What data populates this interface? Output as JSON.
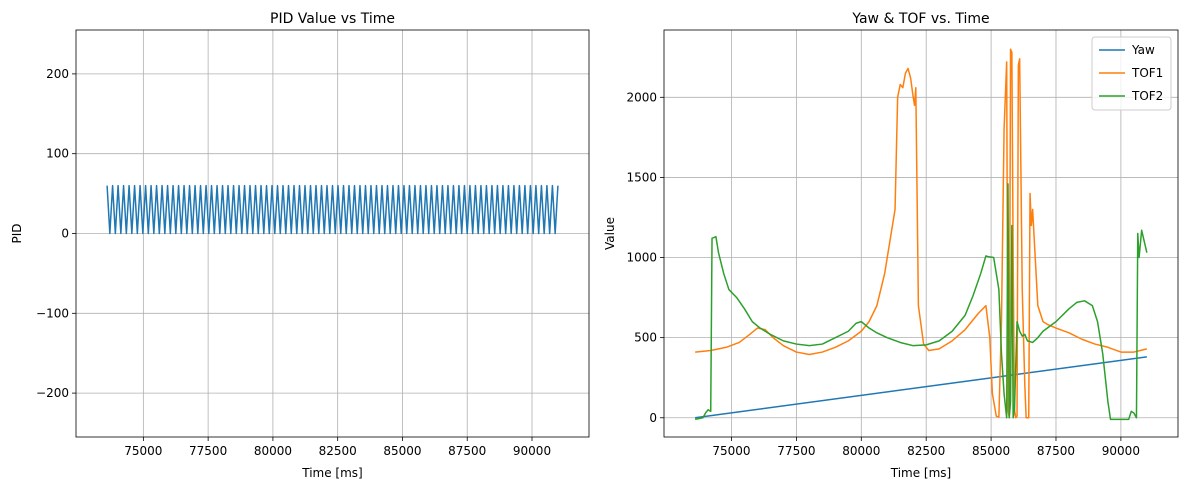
{
  "chart_data": [
    {
      "type": "line",
      "title": "PID Value vs Time",
      "xlabel": "Time [ms]",
      "ylabel": "PID",
      "xlim": [
        72400,
        92200
      ],
      "ylim": [
        -255,
        255
      ],
      "xticks": [
        75000,
        77500,
        80000,
        82500,
        85000,
        87500,
        90000
      ],
      "xtick_labels": [
        "75000",
        "77500",
        "80000",
        "82500",
        "85000",
        "87500",
        "90000"
      ],
      "yticks": [
        -200,
        -100,
        0,
        100,
        200
      ],
      "ytick_labels": [
        "−200",
        "−100",
        "0",
        "100",
        "200"
      ],
      "grid": true,
      "legend": null,
      "series": [
        {
          "color": "#1f77b4",
          "oscillation": {
            "x_start": 73600,
            "x_end": 91000,
            "high": 60,
            "low": 0,
            "cycles": 82
          }
        }
      ]
    },
    {
      "type": "line",
      "title": "Yaw & TOF vs. Time",
      "xlabel": "Time [ms]",
      "ylabel": "Value",
      "xlim": [
        72400,
        92200
      ],
      "ylim": [
        -120,
        2420
      ],
      "xticks": [
        75000,
        77500,
        80000,
        82500,
        85000,
        87500,
        90000
      ],
      "xtick_labels": [
        "75000",
        "77500",
        "80000",
        "82500",
        "85000",
        "87500",
        "90000"
      ],
      "yticks": [
        0,
        500,
        1000,
        1500,
        2000
      ],
      "ytick_labels": [
        "0",
        "500",
        "1000",
        "1500",
        "2000"
      ],
      "grid": true,
      "legend": "top-right",
      "series": [
        {
          "name": "Yaw",
          "color": "#1f77b4",
          "x": [
            73600,
            91000
          ],
          "y": [
            0,
            380
          ]
        },
        {
          "name": "TOF1",
          "color": "#ff7f0e",
          "x": [
            73600,
            74200,
            74800,
            75300,
            75700,
            76000,
            76300,
            76600,
            77000,
            77500,
            78000,
            78500,
            79000,
            79500,
            80000,
            80300,
            80600,
            80900,
            81100,
            81300,
            81400,
            81500,
            81600,
            81700,
            81800,
            81900,
            82000,
            82050,
            82100,
            82200,
            82400,
            82600,
            83000,
            83500,
            84000,
            84500,
            84800,
            84950,
            85050,
            85200,
            85300,
            85400,
            85500,
            85600,
            85650,
            85700,
            85750,
            85800,
            85850,
            85900,
            85950,
            86000,
            86050,
            86100,
            86200,
            86300,
            86350,
            86400,
            86450,
            86500,
            86550,
            86600,
            86700,
            86800,
            86900,
            87000,
            87200,
            87500,
            88000,
            88500,
            89000,
            89500,
            90000,
            90500,
            91000
          ],
          "y": [
            410,
            420,
            440,
            470,
            520,
            560,
            550,
            500,
            450,
            410,
            395,
            410,
            440,
            480,
            540,
            600,
            700,
            900,
            1100,
            1300,
            2000,
            2080,
            2060,
            2150,
            2180,
            2120,
            2000,
            1950,
            2060,
            700,
            460,
            420,
            430,
            480,
            550,
            650,
            700,
            500,
            150,
            10,
            5,
            600,
            1800,
            2220,
            50,
            0,
            2300,
            2280,
            1000,
            50,
            0,
            10,
            2200,
            2240,
            800,
            200,
            0,
            0,
            0,
            1400,
            1200,
            1300,
            1000,
            700,
            650,
            600,
            580,
            560,
            530,
            490,
            460,
            440,
            410,
            410,
            430
          ]
        },
        {
          "name": "TOF2",
          "color": "#2ca02c",
          "x": [
            73600,
            73900,
            74000,
            74100,
            74200,
            74250,
            74400,
            74500,
            74700,
            74900,
            75200,
            75500,
            75800,
            76100,
            76500,
            77000,
            77500,
            78000,
            78500,
            79000,
            79500,
            79800,
            80000,
            80300,
            80600,
            81000,
            81500,
            82000,
            82500,
            83000,
            83500,
            84000,
            84300,
            84600,
            84800,
            84900,
            85100,
            85300,
            85400,
            85500,
            85600,
            85650,
            85700,
            85750,
            85800,
            85850,
            85900,
            86000,
            86100,
            86200,
            86300,
            86400,
            86600,
            86800,
            87000,
            87500,
            88000,
            88300,
            88600,
            88900,
            89100,
            89300,
            89500,
            89600,
            89800,
            90000,
            90200,
            90300,
            90400,
            90500,
            90600,
            90650,
            90700,
            90800,
            91000
          ],
          "y": [
            -10,
            0,
            30,
            50,
            40,
            1120,
            1130,
            1030,
            900,
            800,
            750,
            680,
            600,
            560,
            520,
            480,
            460,
            450,
            460,
            500,
            540,
            590,
            600,
            560,
            530,
            500,
            470,
            450,
            455,
            480,
            540,
            640,
            760,
            900,
            1010,
            1005,
            1000,
            800,
            400,
            150,
            0,
            1460,
            0,
            100,
            1200,
            0,
            50,
            600,
            540,
            510,
            520,
            480,
            470,
            500,
            540,
            600,
            680,
            720,
            730,
            700,
            600,
            400,
            100,
            -10,
            -10,
            -10,
            -10,
            -10,
            40,
            30,
            0,
            1150,
            1000,
            1170,
            1030
          ]
        }
      ]
    }
  ]
}
